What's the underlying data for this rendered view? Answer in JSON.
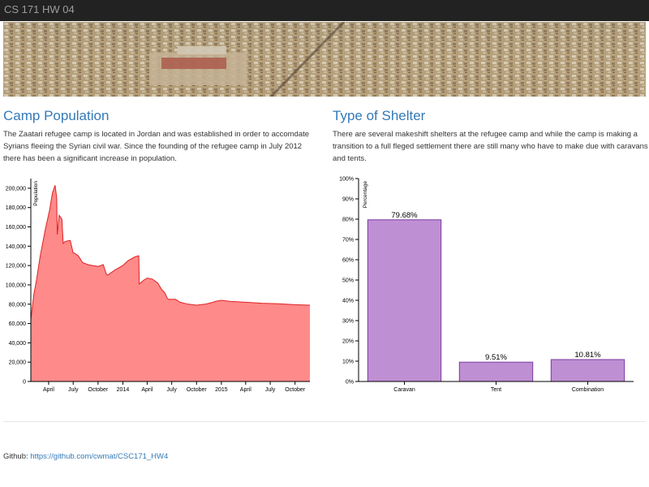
{
  "navbar": {
    "brand": "CS 171 HW 04"
  },
  "left": {
    "title": "Camp Population",
    "text": "The Zaatari refugee camp is located in Jordan and was established in order to accomdate Syrians fleeing the Syrian civil war. Since the founding of the refugee camp in July 2012 there has been a significant increase in population."
  },
  "right": {
    "title": "Type of Shelter",
    "text": "There are several makeshift shelters at the refugee camp and while the camp is making a transition to a full fleged settlement there are still many who have to make due with caravans and tents."
  },
  "footer": {
    "label": "Github:",
    "link_text": "https://github.com/cwmat/CSC171_HW4"
  },
  "colors": {
    "area_fill": "#ff8a8a",
    "area_stroke": "#e02020",
    "bar_fill": "#bf8fd3",
    "bar_stroke": "#7a3aa0",
    "link": "#337ab7"
  },
  "chart_data": [
    {
      "type": "area",
      "ylabel": "Population",
      "ylim": [
        0,
        210000
      ],
      "yticks": [
        0,
        20000,
        40000,
        60000,
        80000,
        100000,
        120000,
        140000,
        160000,
        180000,
        200000
      ],
      "yticklabels": [
        "0",
        "20,000",
        "40,000",
        "60,000",
        "80,000",
        "100,000",
        "120,000",
        "140,000",
        "160,000",
        "180,000",
        "200,000"
      ],
      "xlim": [
        "2013-01-25",
        "2015-11-25"
      ],
      "xticks": [
        "2013-04-01",
        "2013-07-01",
        "2013-10-01",
        "2014-01-01",
        "2014-04-01",
        "2014-07-01",
        "2014-10-01",
        "2015-01-01",
        "2015-04-01",
        "2015-07-01",
        "2015-10-01"
      ],
      "xticklabels": [
        "April",
        "July",
        "October",
        "2014",
        "April",
        "July",
        "October",
        "2015",
        "April",
        "July",
        "October"
      ],
      "x": [
        "2013-01-25",
        "2013-02-05",
        "2013-02-15",
        "2013-03-01",
        "2013-03-20",
        "2013-04-05",
        "2013-04-15",
        "2013-04-25",
        "2013-05-01",
        "2013-05-03",
        "2013-05-10",
        "2013-05-20",
        "2013-05-25",
        "2013-06-01",
        "2013-06-20",
        "2013-07-01",
        "2013-07-05",
        "2013-07-20",
        "2013-08-05",
        "2013-08-25",
        "2013-09-10",
        "2013-10-01",
        "2013-10-20",
        "2013-11-01",
        "2013-11-05",
        "2013-12-01",
        "2014-01-01",
        "2014-01-20",
        "2014-02-15",
        "2014-03-01",
        "2014-03-03",
        "2014-03-20",
        "2014-04-01",
        "2014-04-20",
        "2014-05-10",
        "2014-05-25",
        "2014-06-05",
        "2014-06-15",
        "2014-06-20",
        "2014-07-15",
        "2014-08-01",
        "2014-09-01",
        "2014-10-01",
        "2014-11-01",
        "2014-12-01",
        "2014-12-10",
        "2015-01-01",
        "2015-02-01",
        "2015-04-01",
        "2015-06-01",
        "2015-08-01",
        "2015-10-01",
        "2015-11-25"
      ],
      "y": [
        64000,
        90000,
        105000,
        130000,
        158000,
        178000,
        195000,
        203000,
        190000,
        152000,
        172000,
        168000,
        143000,
        145000,
        146000,
        133000,
        133000,
        130000,
        123000,
        121000,
        120000,
        119000,
        121000,
        111000,
        110000,
        115000,
        120000,
        125000,
        129000,
        130000,
        101000,
        105000,
        107000,
        106000,
        102000,
        95000,
        92000,
        86000,
        85000,
        85000,
        82000,
        80000,
        79000,
        80000,
        82000,
        83000,
        84000,
        83000,
        82000,
        81000,
        80500,
        79500,
        79000
      ]
    },
    {
      "type": "bar",
      "ylabel": "Percentage",
      "ylim": [
        0,
        100
      ],
      "yticks": [
        0,
        10,
        20,
        30,
        40,
        50,
        60,
        70,
        80,
        90,
        100
      ],
      "categories": [
        "Caravan",
        "Tent",
        "Combination"
      ],
      "values": [
        79.68,
        9.51,
        10.81
      ],
      "value_labels": [
        "79.68%",
        "9.51%",
        "10.81%"
      ]
    }
  ]
}
